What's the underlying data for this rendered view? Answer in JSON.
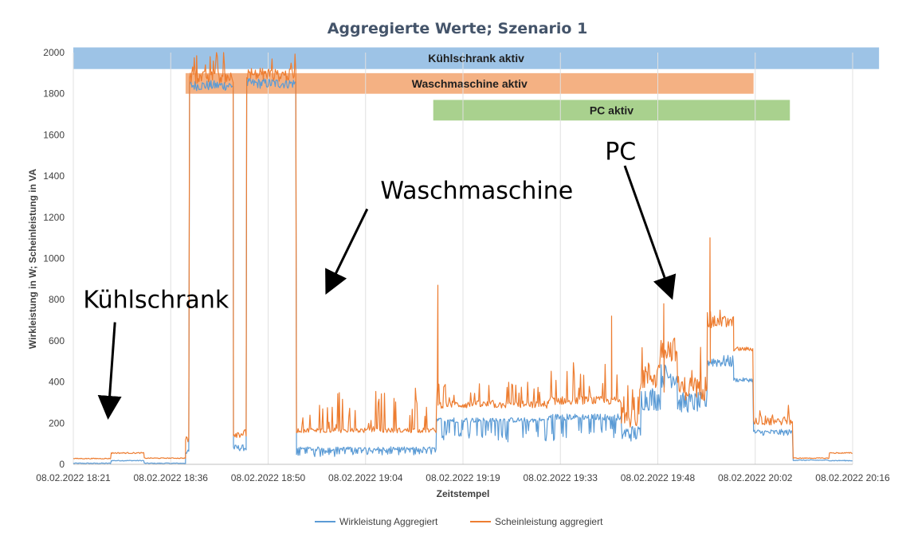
{
  "colors": {
    "wirk": "#5b9bd5",
    "schein": "#ed7d31",
    "band_kuehl": "#9dc3e6",
    "band_wasch": "#f4b183",
    "band_pc": "#a9d18e",
    "grid": "#e0e0e0",
    "title": "#44546a"
  },
  "chart_data": {
    "type": "line",
    "title": "Aggregierte Werte; Szenario 1",
    "xlabel": "Zeitstempel",
    "ylabel": "Wirkleistung in W; Scheinleistung in VA",
    "ylim": [
      0,
      2000
    ],
    "yticks": [
      0,
      200,
      400,
      600,
      800,
      1000,
      1200,
      1400,
      1600,
      1800,
      2000
    ],
    "xlim_min": [
      0,
      118
    ],
    "xticks": [
      {
        "min": 0,
        "label": "08.02.2022 18:21"
      },
      {
        "min": 14.75,
        "label": "08.02.2022 18:36"
      },
      {
        "min": 29.5,
        "label": "08.02.2022 18:50"
      },
      {
        "min": 44.25,
        "label": "08.02.2022 19:04"
      },
      {
        "min": 59,
        "label": "08.02.2022 19:19"
      },
      {
        "min": 73.75,
        "label": "08.02.2022 19:33"
      },
      {
        "min": 88.5,
        "label": "08.02.2022 19:48"
      },
      {
        "min": 103.25,
        "label": "08.02.2022 20:02"
      },
      {
        "min": 118,
        "label": "08.02.2022 20:16"
      }
    ],
    "grid": "vertical",
    "legend_position": "bottom",
    "bands": [
      {
        "label": "Kühlschrank aktiv",
        "from": -0.5,
        "to": 122,
        "y_top": 2025,
        "y_bottom": 1920,
        "color_key": "band_kuehl"
      },
      {
        "label": "Waschmaschine aktiv",
        "from": 17,
        "to": 103,
        "y_top": 1900,
        "y_bottom": 1800,
        "color_key": "band_wasch"
      },
      {
        "label": "PC aktiv",
        "from": 54.5,
        "to": 108.5,
        "y_top": 1770,
        "y_bottom": 1670,
        "color_key": "band_pc"
      }
    ],
    "series": [
      {
        "name": "Wirkleistung Aggregiert",
        "color_key": "wirk",
        "segments": [
          {
            "from": 0,
            "to": 5.75,
            "base": 5,
            "noise": 2,
            "spikes": 0
          },
          {
            "from": 5.75,
            "to": 10.75,
            "base": 18,
            "noise": 2,
            "spikes": 0
          },
          {
            "from": 10.75,
            "to": 17,
            "base": 5,
            "noise": 2,
            "spikes": 0
          },
          {
            "from": 17,
            "to": 17.6,
            "base": 60,
            "noise": 10,
            "spikes": 0
          },
          {
            "from": 17.6,
            "to": 24.25,
            "base": 1840,
            "noise": 25,
            "spikes": 0
          },
          {
            "from": 24.25,
            "to": 26.25,
            "base": 80,
            "noise": 15,
            "spikes": 0
          },
          {
            "from": 26.25,
            "to": 33.8,
            "base": 1850,
            "noise": 25,
            "spikes": 0
          },
          {
            "from": 33.8,
            "to": 55,
            "base": 75,
            "noise": 10,
            "spikes": 0,
            "dips": 30
          },
          {
            "from": 55,
            "to": 72,
            "base": 215,
            "noise": 12,
            "spikes": 0,
            "dips": 100
          },
          {
            "from": 72,
            "to": 83,
            "base": 230,
            "noise": 15,
            "spikes": 0,
            "dips": 110
          },
          {
            "from": 83,
            "to": 86,
            "base": 150,
            "noise": 40,
            "spikes": 0
          },
          {
            "from": 86,
            "to": 89,
            "base": 320,
            "noise": 60,
            "spikes": 0
          },
          {
            "from": 89,
            "to": 91.5,
            "base": 430,
            "noise": 60,
            "spikes": 0
          },
          {
            "from": 91.5,
            "to": 96,
            "base": 300,
            "noise": 50,
            "spikes": 0
          },
          {
            "from": 96,
            "to": 100,
            "base": 500,
            "noise": 30,
            "spikes": 0
          },
          {
            "from": 100,
            "to": 103,
            "base": 410,
            "noise": 10,
            "spikes": 0
          },
          {
            "from": 103,
            "to": 109,
            "base": 155,
            "noise": 15,
            "spikes": 0
          },
          {
            "from": 109,
            "to": 114.5,
            "base": 20,
            "noise": 2,
            "spikes": 0
          },
          {
            "from": 114.5,
            "to": 118,
            "base": 18,
            "noise": 2,
            "spikes": 0
          }
        ]
      },
      {
        "name": "Scheinleistung aggregiert",
        "color_key": "schein",
        "segments": [
          {
            "from": 0,
            "to": 5.75,
            "base": 28,
            "noise": 2,
            "spikes": 0
          },
          {
            "from": 5.75,
            "to": 10.75,
            "base": 55,
            "noise": 3,
            "spikes": 0
          },
          {
            "from": 10.75,
            "to": 17,
            "base": 30,
            "noise": 2,
            "spikes": 0
          },
          {
            "from": 17,
            "to": 17.6,
            "base": 120,
            "noise": 15,
            "spikes": 0
          },
          {
            "from": 17.6,
            "to": 24.25,
            "base": 1880,
            "noise": 30,
            "spikes": 130
          },
          {
            "from": 24.25,
            "to": 26.25,
            "base": 150,
            "noise": 20,
            "spikes": 0
          },
          {
            "from": 26.25,
            "to": 33.8,
            "base": 1890,
            "noise": 30,
            "spikes": 120
          },
          {
            "from": 33.8,
            "to": 55,
            "base": 165,
            "noise": 12,
            "spikes": 200
          },
          {
            "from": 55,
            "to": 72,
            "base": 290,
            "noise": 18,
            "spikes": 110
          },
          {
            "from": 72,
            "to": 83,
            "base": 310,
            "noise": 20,
            "spikes": 180
          },
          {
            "from": 83,
            "to": 86,
            "base": 240,
            "noise": 60,
            "spikes": 150
          },
          {
            "from": 86,
            "to": 89,
            "base": 430,
            "noise": 70,
            "spikes": 180
          },
          {
            "from": 89,
            "to": 91.5,
            "base": 560,
            "noise": 60,
            "spikes": 120
          },
          {
            "from": 91.5,
            "to": 96,
            "base": 370,
            "noise": 60,
            "spikes": 200
          },
          {
            "from": 96,
            "to": 100,
            "base": 690,
            "noise": 30,
            "spikes": 80
          },
          {
            "from": 100,
            "to": 103,
            "base": 560,
            "noise": 10,
            "spikes": 0
          },
          {
            "from": 103,
            "to": 109,
            "base": 210,
            "noise": 20,
            "spikes": 100
          },
          {
            "from": 109,
            "to": 114.5,
            "base": 30,
            "noise": 2,
            "spikes": 0
          },
          {
            "from": 114.5,
            "to": 118,
            "base": 55,
            "noise": 3,
            "spikes": 0
          }
        ],
        "peaks": [
          {
            "min": 55.2,
            "value": 870
          },
          {
            "min": 81.5,
            "value": 720
          },
          {
            "min": 89.4,
            "value": 780
          },
          {
            "min": 96.4,
            "value": 1100
          }
        ]
      }
    ],
    "annotations": [
      {
        "text": "Kühlschrank",
        "x_min": 1.5,
        "y": 760,
        "arrow_from": [
          6.3,
          690
        ],
        "arrow_to": [
          5.3,
          240
        ]
      },
      {
        "text": "Waschmaschine",
        "x_min": 46.5,
        "y": 1290,
        "arrow_from": [
          44.5,
          1240
        ],
        "arrow_to": [
          38.5,
          845
        ]
      },
      {
        "text": "PC",
        "x_min": 80.5,
        "y": 1480,
        "arrow_from": [
          83.5,
          1450
        ],
        "arrow_to": [
          90.5,
          820
        ]
      }
    ]
  }
}
